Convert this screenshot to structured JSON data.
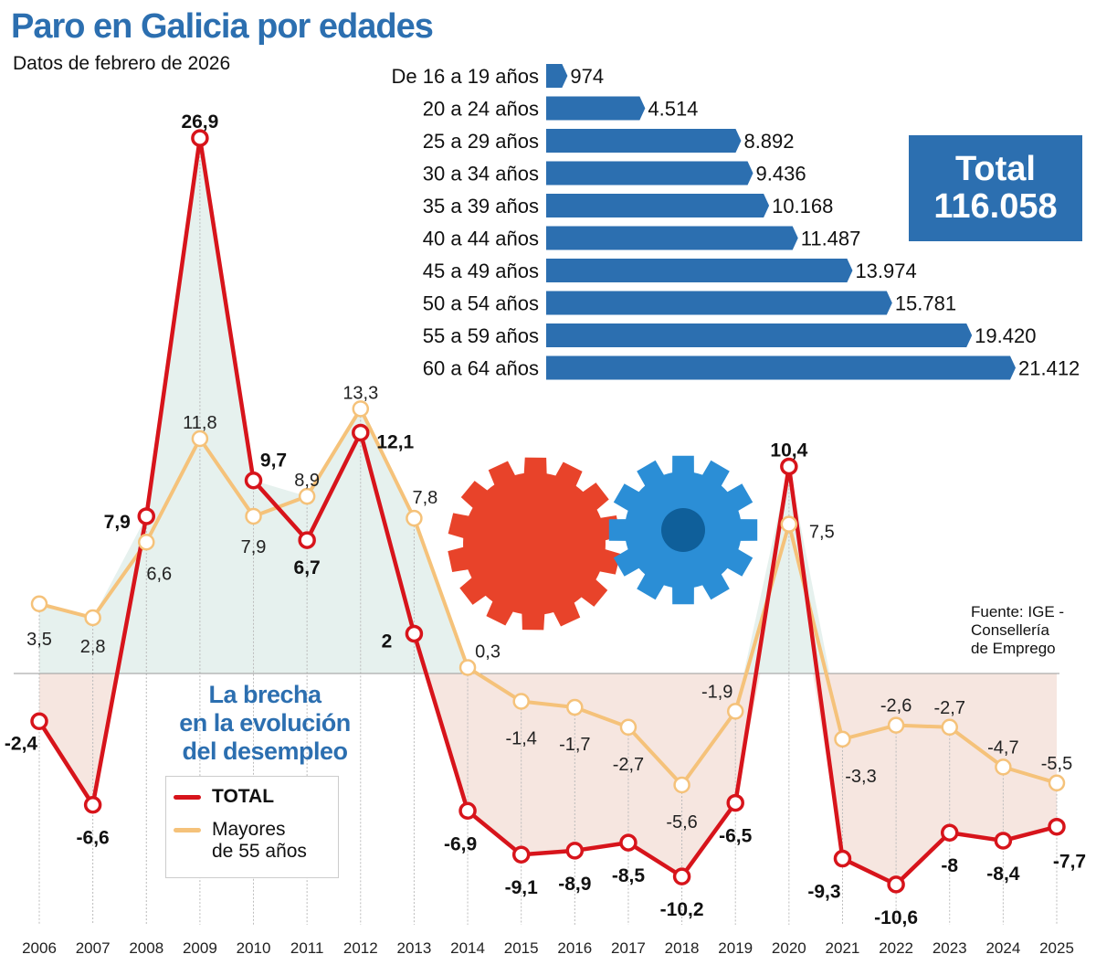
{
  "header": {
    "title": "Paro en Galicia por edades",
    "subtitle": "Datos de febrero de 2026"
  },
  "total_box": {
    "label": "Total",
    "value": "116.058"
  },
  "annotation": {
    "line1": "La brecha",
    "line2": "en la evolución",
    "line3": "del desempleo"
  },
  "source": {
    "line1": "Fuente: IGE -",
    "line2": "Consellería",
    "line3": "de Emprego"
  },
  "colors": {
    "brand_blue": "#2c6fb0",
    "total_red": "#d7141b",
    "mayores_yellow": "#f5c27a",
    "fill_green": "#e6f1ee",
    "fill_pink": "#f6e6e0"
  },
  "illustration": {
    "icon": "gears-icon",
    "description_colors": [
      "red",
      "blue"
    ]
  },
  "chart_data": [
    {
      "type": "bar",
      "orientation": "horizontal",
      "categories": [
        "De 16 a 19 años",
        "20 a 24 años",
        "25 a 29 años",
        "30 a 34 años",
        "35 a 39 años",
        "40 a 44 años",
        "45 a 49 años",
        "50 a 54 años",
        "55 a 59 años",
        "60 a 64 años"
      ],
      "values": [
        974,
        4514,
        8892,
        9436,
        10168,
        11487,
        13974,
        15781,
        19420,
        21412
      ],
      "value_labels": [
        "974",
        "4.514",
        "8.892",
        "9.436",
        "10.168",
        "11.487",
        "13.974",
        "15.781",
        "19.420",
        "21.412"
      ]
    },
    {
      "type": "line",
      "x": [
        "2006",
        "2007",
        "2008",
        "2009",
        "2010",
        "2011",
        "2012",
        "2013",
        "2014",
        "2015",
        "2016",
        "2017",
        "2018",
        "2019",
        "2020",
        "2021",
        "2022",
        "2023",
        "2024",
        "2025"
      ],
      "series": [
        {
          "name": "TOTAL",
          "values": [
            -2.4,
            -6.6,
            7.9,
            26.9,
            9.7,
            6.7,
            12.1,
            2,
            -6.9,
            -9.1,
            -8.9,
            -8.5,
            -10.2,
            -6.5,
            10.4,
            -9.3,
            -10.6,
            -8,
            -8.4,
            -7.7
          ],
          "labels": [
            "-2,4",
            "-6,6",
            "7,9",
            "26,9",
            "9,7",
            "6,7",
            "12,1",
            "2",
            "-6,9",
            "-9,1",
            "-8,9",
            "-8,5",
            "-10,2",
            "-6,5",
            "10,4",
            "-9,3",
            "-10,6",
            "-8",
            "-8,4",
            "-7,7"
          ]
        },
        {
          "name": "Mayores de 55 años",
          "name_line1": "Mayores",
          "name_line2": "de 55 años",
          "values": [
            3.5,
            2.8,
            6.6,
            11.8,
            7.9,
            8.9,
            13.3,
            7.8,
            0.3,
            -1.4,
            -1.7,
            -2.7,
            -5.6,
            -1.9,
            7.5,
            -3.3,
            -2.6,
            -2.7,
            -4.7,
            -5.5
          ],
          "labels": [
            "3,5",
            "2,8",
            "6,6",
            "11,8",
            "7,9",
            "8,9",
            "13,3",
            "7,8",
            "0,3",
            "-1,4",
            "-1,7",
            "-2,7",
            "-5,6",
            "-1,9",
            "7,5",
            "-3,3",
            "-2,6",
            "-2,7",
            "-4,7",
            "-5,5"
          ]
        }
      ],
      "legend": "bottom-left",
      "grid": "vertical dotted",
      "zero_line": true
    }
  ]
}
